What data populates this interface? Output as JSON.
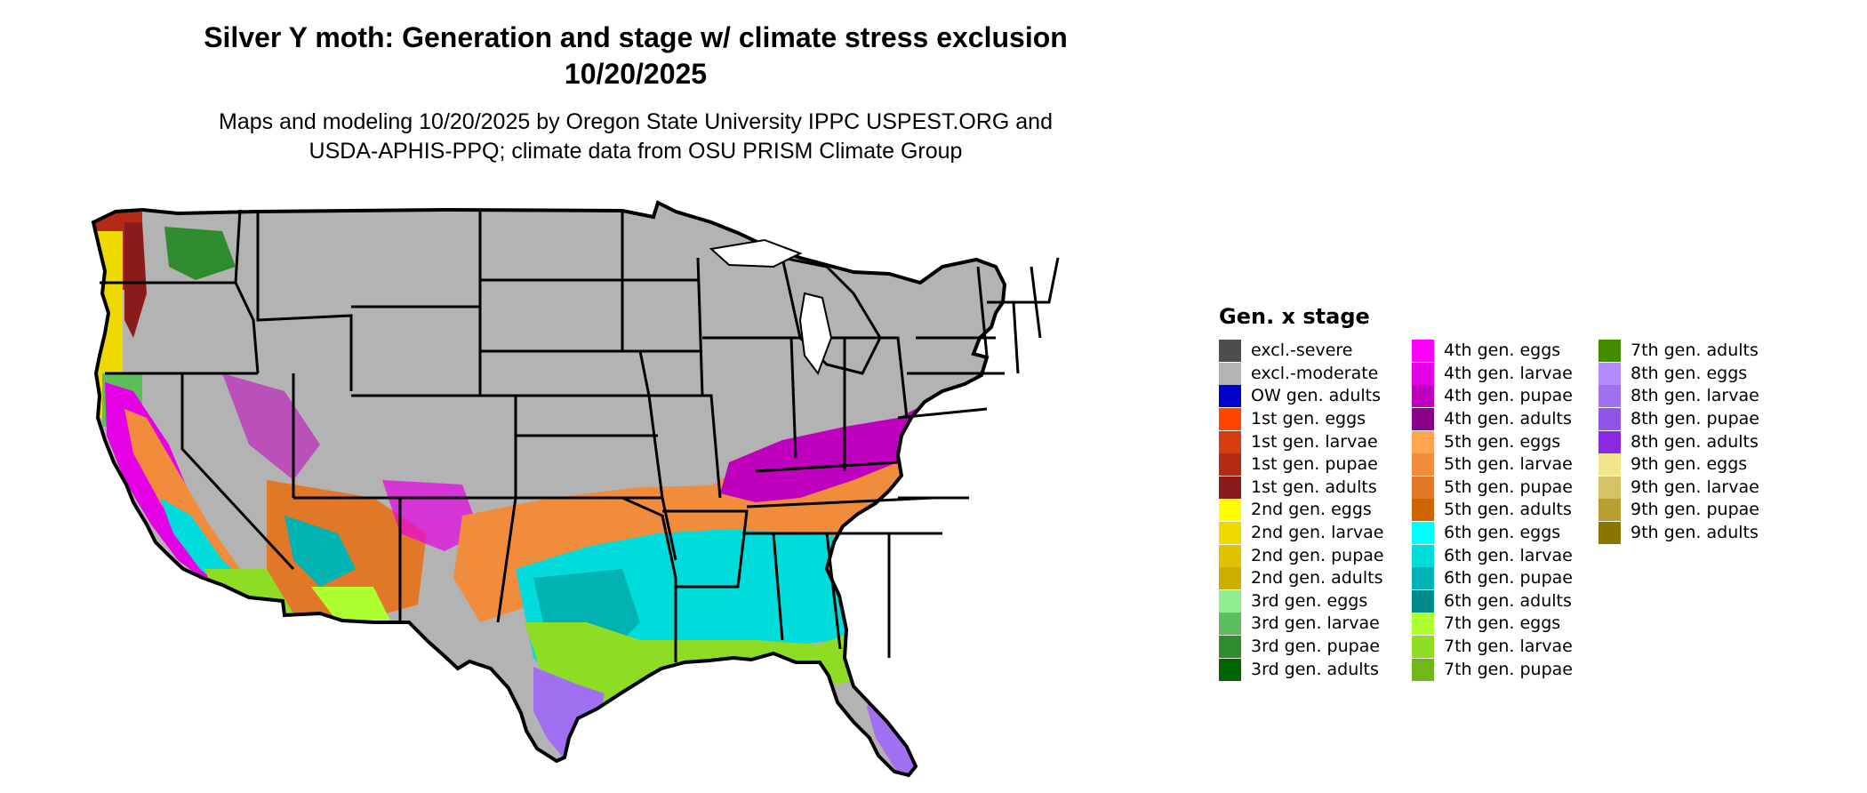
{
  "title": "Silver Y moth: Generation and stage w/ climate stress exclusion\n10/20/2025",
  "title_line1": "Silver Y moth: Generation and stage w/ climate stress exclusion",
  "title_line2": "10/20/2025",
  "subtitle_line1": "Maps and modeling 10/20/2025 by Oregon State University IPPC USPEST.ORG and",
  "subtitle_line2": "USDA-APHIS-PPQ; climate data from OSU PRISM Climate Group",
  "legend": {
    "title": "Gen. x stage",
    "columns": [
      [
        {
          "label": "excl.-severe",
          "color": "#4d4d4d"
        },
        {
          "label": "excl.-moderate",
          "color": "#b3b3b3"
        },
        {
          "label": "OW gen. adults",
          "color": "#0000cd"
        },
        {
          "label": "1st gen. eggs",
          "color": "#ff4500"
        },
        {
          "label": "1st gen. larvae",
          "color": "#d63d10"
        },
        {
          "label": "1st gen. pupae",
          "color": "#b32b14"
        },
        {
          "label": "1st gen. adults",
          "color": "#8b1a1a"
        },
        {
          "label": "2nd gen. eggs",
          "color": "#ffff00"
        },
        {
          "label": "2nd gen. larvae",
          "color": "#eeda00"
        },
        {
          "label": "2nd gen. pupae",
          "color": "#e0c200"
        },
        {
          "label": "2nd gen. adults",
          "color": "#cdad00"
        },
        {
          "label": "3rd gen. eggs",
          "color": "#90ee90"
        },
        {
          "label": "3rd gen. larvae",
          "color": "#5cbf5c"
        },
        {
          "label": "3rd gen. pupae",
          "color": "#2e8b2e"
        },
        {
          "label": "3rd gen. adults",
          "color": "#006400"
        }
      ],
      [
        {
          "label": "4th gen. eggs",
          "color": "#ff00ff"
        },
        {
          "label": "4th gen. larvae",
          "color": "#e600e6"
        },
        {
          "label": "4th gen. pupae",
          "color": "#bf00bf"
        },
        {
          "label": "4th gen. adults",
          "color": "#8b008b"
        },
        {
          "label": "5th gen. eggs",
          "color": "#ffa54f"
        },
        {
          "label": "5th gen. larvae",
          "color": "#f08c3c"
        },
        {
          "label": "5th gen. pupae",
          "color": "#e07828"
        },
        {
          "label": "5th gen. adults",
          "color": "#cd6600"
        },
        {
          "label": "6th gen. eggs",
          "color": "#00ffff"
        },
        {
          "label": "6th gen. larvae",
          "color": "#00dcdc"
        },
        {
          "label": "6th gen. pupae",
          "color": "#00b2b2"
        },
        {
          "label": "6th gen. adults",
          "color": "#008b8b"
        },
        {
          "label": "7th gen. eggs",
          "color": "#adff2f"
        },
        {
          "label": "7th gen. larvae",
          "color": "#8fdc24"
        },
        {
          "label": "7th gen. pupae",
          "color": "#6fb81a"
        }
      ],
      [
        {
          "label": "7th gen. adults",
          "color": "#458b00"
        },
        {
          "label": "8th gen. eggs",
          "color": "#b28cff"
        },
        {
          "label": "8th gen. larvae",
          "color": "#a070f0"
        },
        {
          "label": "8th gen. pupae",
          "color": "#9055e6"
        },
        {
          "label": "8th gen. adults",
          "color": "#8a2be2"
        },
        {
          "label": "9th gen. eggs",
          "color": "#f0e68c"
        },
        {
          "label": "9th gen. larvae",
          "color": "#d6c266"
        },
        {
          "label": "9th gen. pupae",
          "color": "#b89e33"
        },
        {
          "label": "9th gen. adults",
          "color": "#8b7500"
        }
      ]
    ]
  }
}
